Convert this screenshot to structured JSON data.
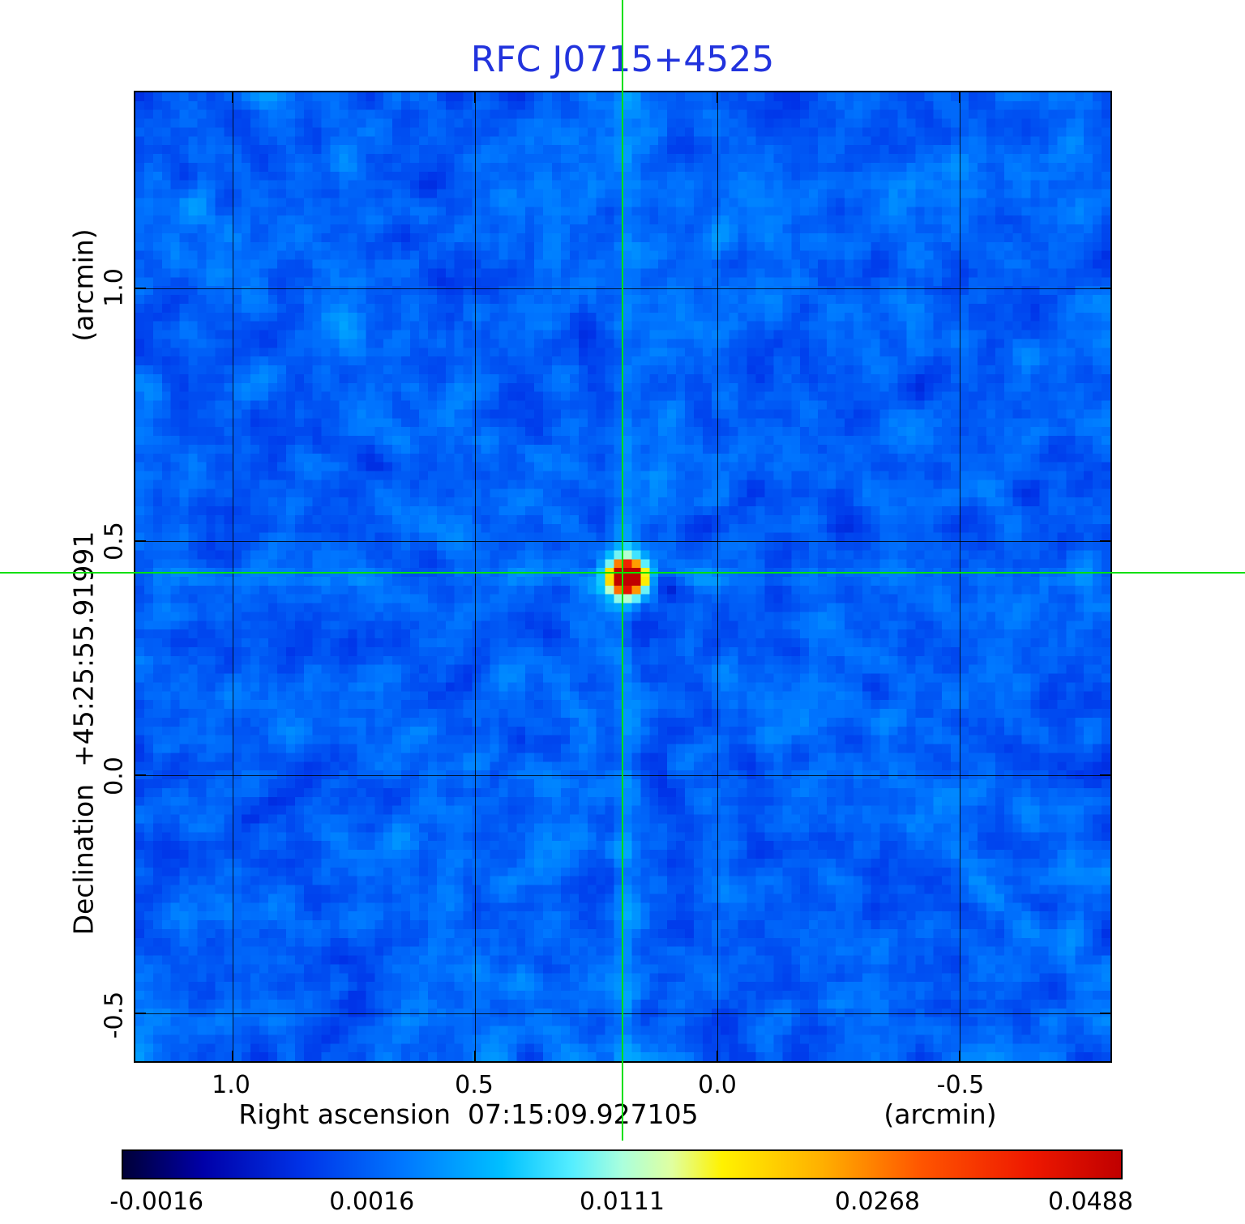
{
  "chart_data": {
    "type": "heatmap",
    "title": "RFC J0715+4525",
    "title_color": "#2233dd",
    "x_axis": {
      "label": "Right ascension  07:15:09.927105",
      "unit": "(arcmin)",
      "ticks": [
        "1.0",
        "0.5",
        "0.0",
        "-0.5"
      ],
      "tick_positions": [
        0.0994,
        0.348,
        0.5965,
        0.845
      ]
    },
    "y_axis": {
      "label": "Declination  +45:25:55.91991",
      "unit": "(arcmin)",
      "ticks": [
        "1.0",
        "0.5",
        "0.0",
        "-0.5"
      ],
      "tick_positions": [
        0.2025,
        0.463,
        0.705,
        0.9505
      ]
    },
    "colorbar": {
      "tick_labels": [
        "-0.0016",
        "0.0016",
        "0.0111",
        "0.0268",
        "0.0488"
      ],
      "tick_values": [
        -0.0016,
        0.0016,
        0.0111,
        0.0268,
        0.0488
      ],
      "tick_positions": [
        0.035,
        0.25,
        0.5,
        0.755,
        0.968
      ],
      "stops": [
        {
          "pos": 0.0,
          "color": "#000038"
        },
        {
          "pos": 0.08,
          "color": "#0000a8"
        },
        {
          "pos": 0.18,
          "color": "#0033e8"
        },
        {
          "pos": 0.28,
          "color": "#0077ff"
        },
        {
          "pos": 0.38,
          "color": "#00c0ff"
        },
        {
          "pos": 0.45,
          "color": "#55eeff"
        },
        {
          "pos": 0.5,
          "color": "#aaffdd"
        },
        {
          "pos": 0.55,
          "color": "#e0ffa0"
        },
        {
          "pos": 0.6,
          "color": "#fff200"
        },
        {
          "pos": 0.7,
          "color": "#ffb000"
        },
        {
          "pos": 0.8,
          "color": "#ff5500"
        },
        {
          "pos": 0.91,
          "color": "#ee1800"
        },
        {
          "pos": 1.0,
          "color": "#c00000"
        }
      ]
    },
    "crosshair": {
      "color": "#00e000",
      "x_frac": 0.4995,
      "y_frac": 0.4958
    },
    "source": {
      "peak_value": 0.0488,
      "x_frac": 0.4995,
      "y_frac": 0.4958
    },
    "background": {
      "base_level": 0.25,
      "noise_amp": 0.11,
      "seed": 1987
    }
  }
}
